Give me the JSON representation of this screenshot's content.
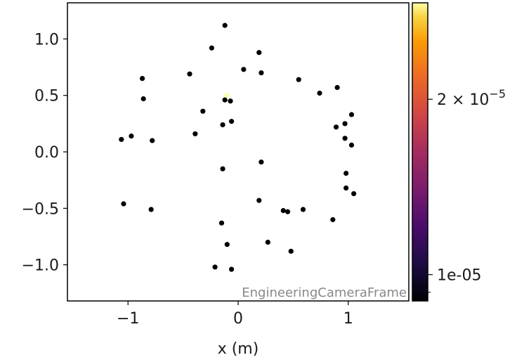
{
  "chart_data": {
    "type": "scatter",
    "title": "",
    "xlabel": "x  (m)",
    "ylabel": "",
    "xlim": [
      -1.55,
      1.55
    ],
    "ylim": [
      -1.32,
      1.32
    ],
    "xticks": [
      -1,
      0,
      1
    ],
    "xtick_labels": [
      "−1",
      "0",
      "1"
    ],
    "yticks": [
      1.0,
      0.5,
      0.0,
      -0.5,
      -1.0
    ],
    "ytick_labels": [
      "1.0",
      "0.5",
      "0.0",
      "−0.5",
      "−1.0"
    ],
    "grid": false,
    "annotation": "EngineeringCameraFrame",
    "point_color": "#000000",
    "highlight_point": {
      "x": -0.1,
      "y": 0.5,
      "color": "#fcffa4"
    },
    "points": [
      {
        "x": -0.12,
        "y": 1.12
      },
      {
        "x": -0.24,
        "y": 0.92
      },
      {
        "x": 0.19,
        "y": 0.88
      },
      {
        "x": 0.05,
        "y": 0.73
      },
      {
        "x": 0.21,
        "y": 0.7
      },
      {
        "x": -0.44,
        "y": 0.69
      },
      {
        "x": -0.87,
        "y": 0.65
      },
      {
        "x": 0.55,
        "y": 0.64
      },
      {
        "x": 0.74,
        "y": 0.52
      },
      {
        "x": 0.9,
        "y": 0.57
      },
      {
        "x": -0.86,
        "y": 0.47
      },
      {
        "x": -0.12,
        "y": 0.46
      },
      {
        "x": -0.07,
        "y": 0.45
      },
      {
        "x": -0.32,
        "y": 0.36
      },
      {
        "x": 1.03,
        "y": 0.33
      },
      {
        "x": -0.06,
        "y": 0.27
      },
      {
        "x": -0.14,
        "y": 0.24
      },
      {
        "x": 0.89,
        "y": 0.22
      },
      {
        "x": 0.97,
        "y": 0.25
      },
      {
        "x": -0.39,
        "y": 0.16
      },
      {
        "x": -0.97,
        "y": 0.14
      },
      {
        "x": -1.06,
        "y": 0.11
      },
      {
        "x": -0.78,
        "y": 0.1
      },
      {
        "x": 0.97,
        "y": 0.12
      },
      {
        "x": 1.03,
        "y": 0.06
      },
      {
        "x": 0.21,
        "y": -0.09
      },
      {
        "x": -0.14,
        "y": -0.15
      },
      {
        "x": 0.98,
        "y": -0.19
      },
      {
        "x": 0.98,
        "y": -0.32
      },
      {
        "x": 1.05,
        "y": -0.37
      },
      {
        "x": 0.19,
        "y": -0.43
      },
      {
        "x": -1.04,
        "y": -0.46
      },
      {
        "x": -0.79,
        "y": -0.51
      },
      {
        "x": 0.41,
        "y": -0.52
      },
      {
        "x": 0.45,
        "y": -0.53
      },
      {
        "x": 0.59,
        "y": -0.51
      },
      {
        "x": 0.86,
        "y": -0.6
      },
      {
        "x": -0.15,
        "y": -0.63
      },
      {
        "x": 0.27,
        "y": -0.8
      },
      {
        "x": -0.1,
        "y": -0.82
      },
      {
        "x": 0.48,
        "y": -0.88
      },
      {
        "x": -0.21,
        "y": -1.02
      },
      {
        "x": -0.06,
        "y": -1.04
      }
    ],
    "colorbar": {
      "colormap": "inferno",
      "vmin": 8.5e-06,
      "vmax": 2.55e-05,
      "ticks": [
        {
          "value": 1e-05,
          "label": "1e-05",
          "superscript": ""
        },
        {
          "value": 2e-05,
          "label": "2 × 10",
          "superscript": "−5"
        }
      ],
      "minor_ticks": [
        9e-06
      ]
    }
  }
}
